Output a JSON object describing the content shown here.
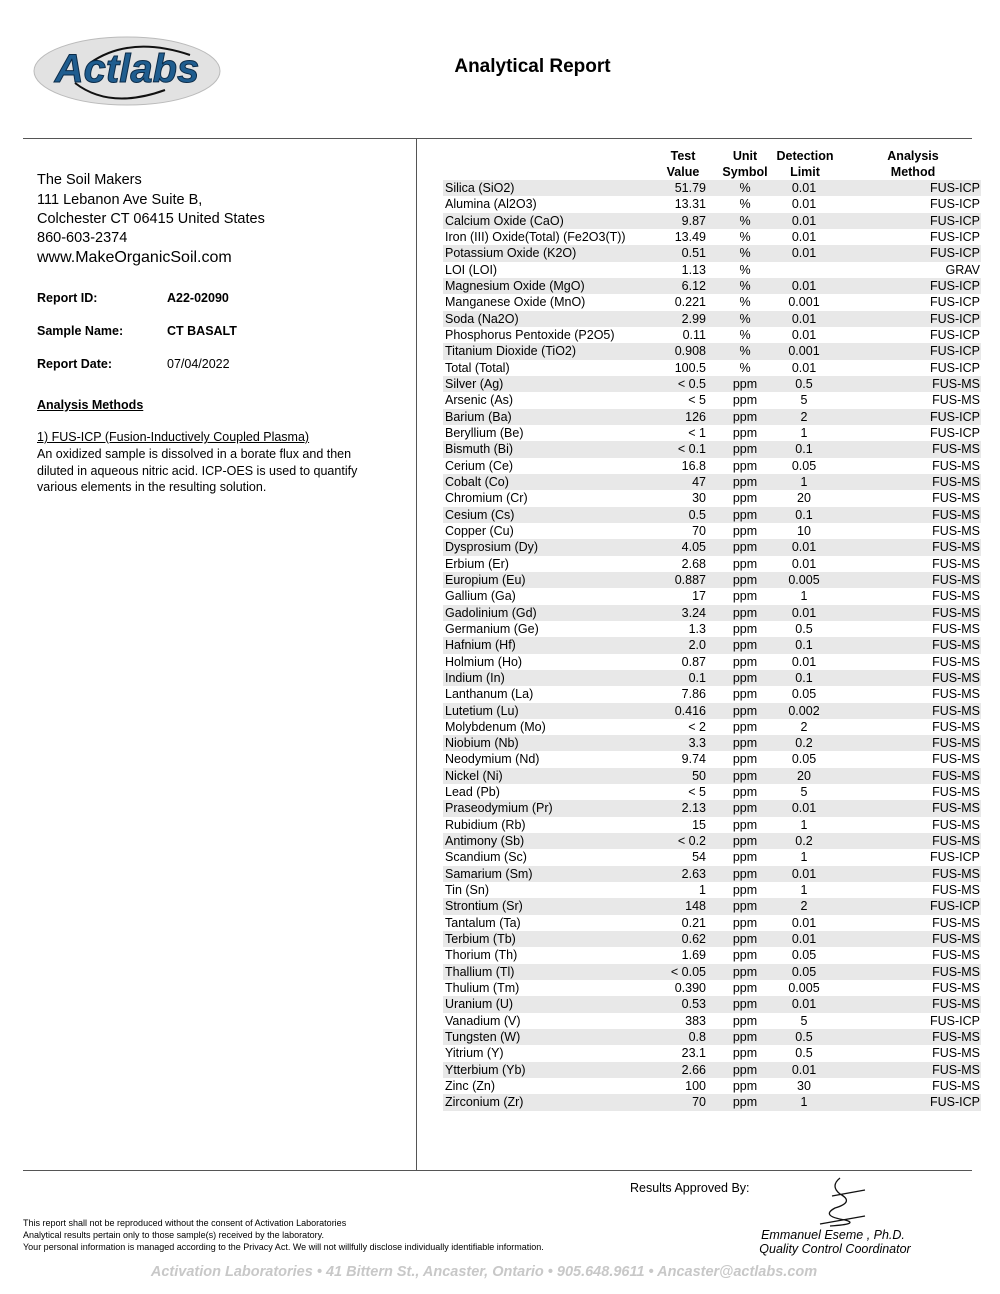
{
  "header": {
    "logo_text": "Actlabs",
    "title": "Analytical Report"
  },
  "client": {
    "name": "The Soil Makers",
    "address1": "111 Lebanon Ave Suite B,",
    "address2": "Colchester CT 06415 United States",
    "phone": "860-603-2374",
    "website": "www.MakeOrganicSoil.com"
  },
  "report": {
    "id_label": "Report ID:",
    "id": "A22-02090",
    "sample_label": "Sample Name:",
    "sample": "CT BASALT",
    "date_label": "Report Date:",
    "date": "07/04/2022"
  },
  "methods": {
    "heading": "Analysis Methods",
    "item1_title": "1) FUS-ICP (Fusion-Inductively Coupled Plasma)",
    "item1_desc": "An oxidized sample is dissolved in a borate flux and then diluted in aqueous nitric acid. ICP-OES is used to quantify various elements in the resulting solution."
  },
  "table": {
    "headers": {
      "value1": "Test",
      "value2": "Value",
      "unit1": "Unit",
      "unit2": "Symbol",
      "dl1": "Detection",
      "dl2": "Limit",
      "method1": "Analysis",
      "method2": "Method"
    },
    "rows": [
      [
        "Silica (SiO2)",
        "51.79",
        "%",
        "0.01",
        "FUS-ICP"
      ],
      [
        "Alumina (Al2O3)",
        "13.31",
        "%",
        "0.01",
        "FUS-ICP"
      ],
      [
        "Calcium Oxide (CaO)",
        "9.87",
        "%",
        "0.01",
        "FUS-ICP"
      ],
      [
        "Iron (III) Oxide(Total) (Fe2O3(T))",
        "13.49",
        "%",
        "0.01",
        "FUS-ICP"
      ],
      [
        "Potassium Oxide (K2O)",
        "0.51",
        "%",
        "0.01",
        "FUS-ICP"
      ],
      [
        "LOI (LOI)",
        "1.13",
        "%",
        "",
        "GRAV"
      ],
      [
        "Magnesium Oxide (MgO)",
        "6.12",
        "%",
        "0.01",
        "FUS-ICP"
      ],
      [
        "Manganese Oxide (MnO)",
        "0.221",
        "%",
        "0.001",
        "FUS-ICP"
      ],
      [
        "Soda (Na2O)",
        "2.99",
        "%",
        "0.01",
        "FUS-ICP"
      ],
      [
        "Phosphorus Pentoxide (P2O5)",
        "0.11",
        "%",
        "0.01",
        "FUS-ICP"
      ],
      [
        "Titanium Dioxide (TiO2)",
        "0.908",
        "%",
        "0.001",
        "FUS-ICP"
      ],
      [
        "Total (Total)",
        "100.5",
        "%",
        "0.01",
        "FUS-ICP"
      ],
      [
        "Silver (Ag)",
        "< 0.5",
        "ppm",
        "0.5",
        "FUS-MS"
      ],
      [
        "Arsenic (As)",
        "< 5",
        "ppm",
        "5",
        "FUS-MS"
      ],
      [
        "Barium (Ba)",
        "126",
        "ppm",
        "2",
        "FUS-ICP"
      ],
      [
        "Beryllium (Be)",
        "< 1",
        "ppm",
        "1",
        "FUS-ICP"
      ],
      [
        "Bismuth (Bi)",
        "< 0.1",
        "ppm",
        "0.1",
        "FUS-MS"
      ],
      [
        "Cerium (Ce)",
        "16.8",
        "ppm",
        "0.05",
        "FUS-MS"
      ],
      [
        "Cobalt (Co)",
        "47",
        "ppm",
        "1",
        "FUS-MS"
      ],
      [
        "Chromium (Cr)",
        "30",
        "ppm",
        "20",
        "FUS-MS"
      ],
      [
        "Cesium (Cs)",
        "0.5",
        "ppm",
        "0.1",
        "FUS-MS"
      ],
      [
        "Copper (Cu)",
        "70",
        "ppm",
        "10",
        "FUS-MS"
      ],
      [
        "Dysprosium (Dy)",
        "4.05",
        "ppm",
        "0.01",
        "FUS-MS"
      ],
      [
        "Erbium (Er)",
        "2.68",
        "ppm",
        "0.01",
        "FUS-MS"
      ],
      [
        "Europium (Eu)",
        "0.887",
        "ppm",
        "0.005",
        "FUS-MS"
      ],
      [
        "Gallium (Ga)",
        "17",
        "ppm",
        "1",
        "FUS-MS"
      ],
      [
        "Gadolinium (Gd)",
        "3.24",
        "ppm",
        "0.01",
        "FUS-MS"
      ],
      [
        "Germanium (Ge)",
        "1.3",
        "ppm",
        "0.5",
        "FUS-MS"
      ],
      [
        "Hafnium (Hf)",
        "2.0",
        "ppm",
        "0.1",
        "FUS-MS"
      ],
      [
        "Holmium (Ho)",
        "0.87",
        "ppm",
        "0.01",
        "FUS-MS"
      ],
      [
        "Indium (In)",
        "0.1",
        "ppm",
        "0.1",
        "FUS-MS"
      ],
      [
        "Lanthanum (La)",
        "7.86",
        "ppm",
        "0.05",
        "FUS-MS"
      ],
      [
        "Lutetium (Lu)",
        "0.416",
        "ppm",
        "0.002",
        "FUS-MS"
      ],
      [
        "Molybdenum (Mo)",
        "< 2",
        "ppm",
        "2",
        "FUS-MS"
      ],
      [
        "Niobium (Nb)",
        "3.3",
        "ppm",
        "0.2",
        "FUS-MS"
      ],
      [
        "Neodymium (Nd)",
        "9.74",
        "ppm",
        "0.05",
        "FUS-MS"
      ],
      [
        "Nickel (Ni)",
        "50",
        "ppm",
        "20",
        "FUS-MS"
      ],
      [
        "Lead (Pb)",
        "< 5",
        "ppm",
        "5",
        "FUS-MS"
      ],
      [
        "Praseodymium (Pr)",
        "2.13",
        "ppm",
        "0.01",
        "FUS-MS"
      ],
      [
        "Rubidium (Rb)",
        "15",
        "ppm",
        "1",
        "FUS-MS"
      ],
      [
        "Antimony (Sb)",
        "< 0.2",
        "ppm",
        "0.2",
        "FUS-MS"
      ],
      [
        "Scandium (Sc)",
        "54",
        "ppm",
        "1",
        "FUS-ICP"
      ],
      [
        "Samarium (Sm)",
        "2.63",
        "ppm",
        "0.01",
        "FUS-MS"
      ],
      [
        "Tin (Sn)",
        "1",
        "ppm",
        "1",
        "FUS-MS"
      ],
      [
        "Strontium (Sr)",
        "148",
        "ppm",
        "2",
        "FUS-ICP"
      ],
      [
        "Tantalum (Ta)",
        "0.21",
        "ppm",
        "0.01",
        "FUS-MS"
      ],
      [
        "Terbium (Tb)",
        "0.62",
        "ppm",
        "0.01",
        "FUS-MS"
      ],
      [
        "Thorium (Th)",
        "1.69",
        "ppm",
        "0.05",
        "FUS-MS"
      ],
      [
        "Thallium (Tl)",
        "< 0.05",
        "ppm",
        "0.05",
        "FUS-MS"
      ],
      [
        "Thulium (Tm)",
        "0.390",
        "ppm",
        "0.005",
        "FUS-MS"
      ],
      [
        "Uranium (U)",
        "0.53",
        "ppm",
        "0.01",
        "FUS-MS"
      ],
      [
        "Vanadium (V)",
        "383",
        "ppm",
        "5",
        "FUS-ICP"
      ],
      [
        "Tungsten (W)",
        "0.8",
        "ppm",
        "0.5",
        "FUS-MS"
      ],
      [
        "Yitrium (Y)",
        "23.1",
        "ppm",
        "0.5",
        "FUS-MS"
      ],
      [
        "Ytterbium (Yb)",
        "2.66",
        "ppm",
        "0.01",
        "FUS-MS"
      ],
      [
        "Zinc (Zn)",
        "100",
        "ppm",
        "30",
        "FUS-MS"
      ],
      [
        "Zirconium (Zr)",
        "70",
        "ppm",
        "1",
        "FUS-ICP"
      ]
    ]
  },
  "approval": {
    "label": "Results Approved By:",
    "name": "Emmanuel Eseme , Ph.D.",
    "role": "Quality Control Coordinator"
  },
  "disclaimer": [
    "This report shall not be reproduced without the consent of Activation Laboratories",
    "Analytical results pertain only to those sample(s) received by the laboratory.",
    "Your personal information is managed according to the Privacy Act. We will not willfully disclose individually identifiable information."
  ],
  "footer": "Activation Laboratories • 41 Bittern St., Ancaster, Ontario • 905.648.9611 • Ancaster@actlabs.com",
  "colors": {
    "logo_blue": "#1f5d8f",
    "row_shade": "#e8e8e8",
    "footer_gray": "#c8c8c8"
  }
}
